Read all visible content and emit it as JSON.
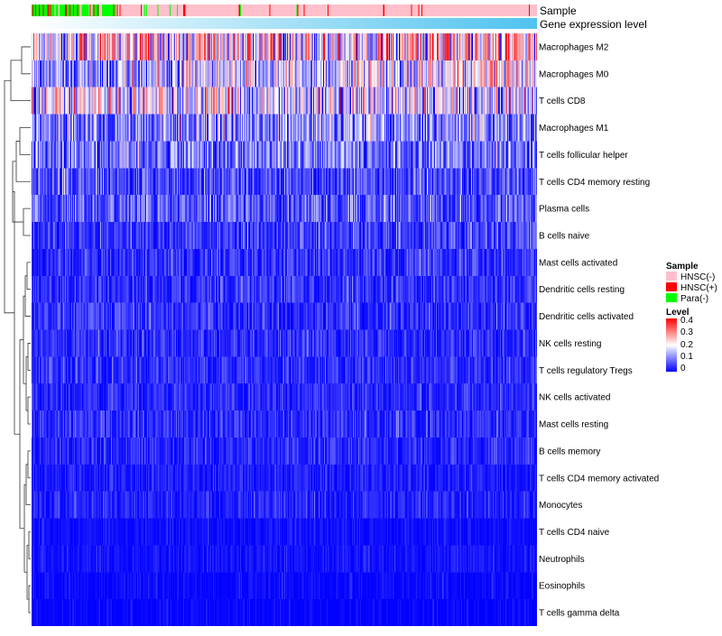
{
  "chart_data": {
    "type": "heatmap",
    "title": "",
    "row_labels": [
      "Macrophages M2",
      "Macrophages M0",
      "T cells CD8",
      "Macrophages M1",
      "T cells follicular helper",
      "T cells CD4 memory resting",
      "Plasma cells",
      "B cells naive",
      "Mast cells activated",
      "Dendritic cells resting",
      "Dendritic cells activated",
      "NK cells resting",
      "T cells regulatory  Tregs",
      "NK cells activated",
      "Mast cells resting",
      "B cells memory",
      "T cells CD4 memory activated",
      "Monocytes",
      "T cells CD4 naive",
      "Neutrophils",
      "Eosinophils",
      "T cells gamma delta"
    ],
    "row_mean_levels": [
      0.22,
      0.16,
      0.17,
      0.12,
      0.1,
      0.07,
      0.08,
      0.06,
      0.05,
      0.05,
      0.05,
      0.045,
      0.045,
      0.04,
      0.045,
      0.04,
      0.03,
      0.035,
      0.015,
      0.02,
      0.01,
      0.005
    ],
    "row_trend": [
      0.02,
      0.12,
      -0.04,
      0,
      0,
      0,
      0,
      0,
      0.01,
      0,
      0,
      0,
      0,
      0,
      0,
      0,
      0,
      0,
      0,
      0,
      0,
      0
    ],
    "num_samples": 546,
    "top_annotations": [
      {
        "label": "Sample"
      },
      {
        "label": "Gene expression level",
        "gradient": [
          "#ffffff",
          "#4fc3ef"
        ]
      }
    ],
    "legend": {
      "sample": {
        "title": "Sample",
        "items": [
          {
            "label": "HNSC(-)",
            "color": "#ffc0cb"
          },
          {
            "label": "HNSC(+)",
            "color": "#ff0000"
          },
          {
            "label": "Para(-)",
            "color": "#00ff00"
          }
        ]
      },
      "level": {
        "title": "Level",
        "ticks": [
          "0.4",
          "0.3",
          "0.2",
          "0.1",
          "0"
        ],
        "range": [
          0,
          0.4
        ],
        "colors": [
          "#0000ff",
          "#ffffff",
          "#ff0000"
        ]
      }
    },
    "dendrogram": "row clustering tree on left",
    "legend_placement": "right"
  }
}
